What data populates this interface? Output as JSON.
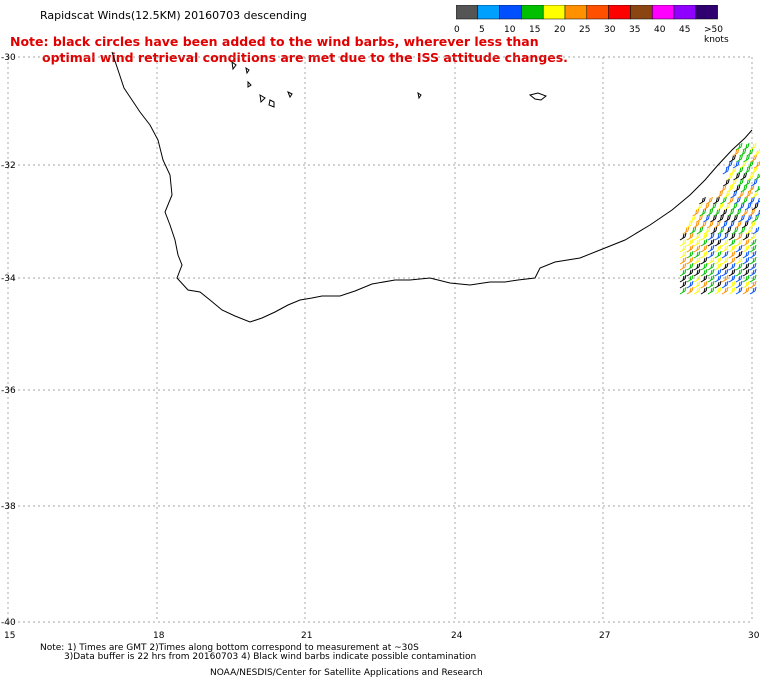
{
  "title": "Rapidscat Winds(12.5KM) 20160703 descending",
  "note": {
    "line1": "Note: black circles have been added to the wind barbs, wherever less than",
    "line2": "optimal wind retrieval conditions are met due to the ISS attitude changes."
  },
  "colorbar": {
    "colors": [
      "#555555",
      "#00a0ff",
      "#0050ff",
      "#00c000",
      "#ffff00",
      "#ff9000",
      "#ff5000",
      "#ff0000",
      "#8b4513",
      "#ff00ff",
      "#9000ff",
      "#300070"
    ],
    "labels": [
      "0",
      "5",
      "10",
      "15",
      "20",
      "25",
      "30",
      "35",
      "40",
      "45",
      ">50 knots"
    ]
  },
  "axes": {
    "lat_labels": [
      "-30",
      "-32",
      "-34",
      "-36",
      "-38",
      "-40"
    ],
    "lon_labels": [
      "15",
      "18",
      "21",
      "24",
      "27",
      "30"
    ]
  },
  "wind_barb_colors": [
    "#ffff00",
    "#ff9000",
    "#00c000",
    "#0050ff",
    "#000000"
  ],
  "footer": {
    "line1": "Note: 1) Times are GMT 2)Times along bottom correspond to measurement at ~30S",
    "line2": "3)Data buffer is 22 hrs from 20160703 4) Black wind barbs indicate possible contamination",
    "credit": "NOAA/NESDIS/Center for Satellite Applications and Research"
  }
}
